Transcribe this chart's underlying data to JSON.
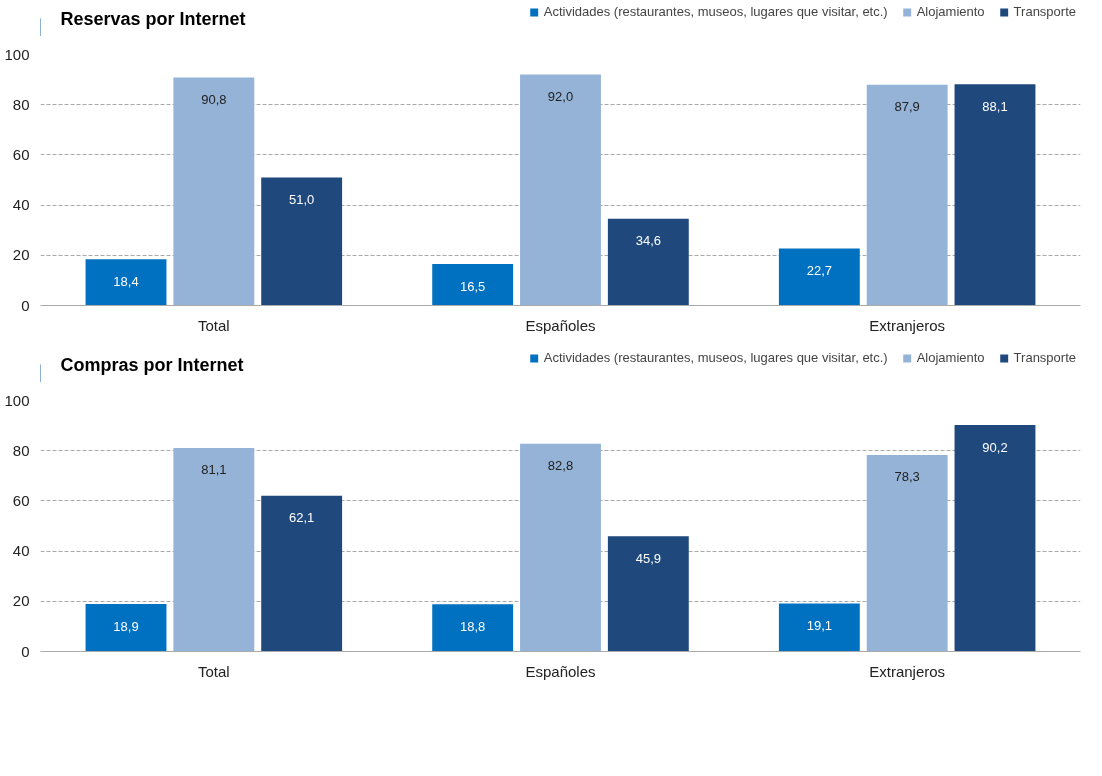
{
  "chart_data": [
    {
      "type": "bar",
      "title": "Reservas por Internet",
      "categories": [
        "Total",
        "Españoles",
        "Extranjeros"
      ],
      "series": [
        {
          "name": "Actividades (restaurantes, museos, lugares que visitar, etc.)",
          "color": "#0070c0",
          "values": [
            18.4,
            16.5,
            22.7
          ],
          "value_labels": [
            "18,4",
            "16,5",
            "22,7"
          ]
        },
        {
          "name": "Alojamiento",
          "color": "#95b3d7",
          "values": [
            90.8,
            92.0,
            87.9
          ],
          "value_labels": [
            "90,8",
            "92,0",
            "87,9"
          ]
        },
        {
          "name": "Transporte",
          "color": "#1f497d",
          "values": [
            51.0,
            34.6,
            88.1
          ],
          "value_labels": [
            "51,0",
            "34,6",
            "88,1"
          ]
        }
      ],
      "ylim": [
        0,
        100
      ],
      "yticks": [
        0,
        20,
        40,
        60,
        80,
        100
      ],
      "grid": "y",
      "legend": "top right"
    },
    {
      "type": "bar",
      "title": "Compras por Internet",
      "categories": [
        "Total",
        "Españoles",
        "Extranjeros"
      ],
      "series": [
        {
          "name": "Actividades (restaurantes, museos, lugares que visitar, etc.)",
          "color": "#0070c0",
          "values": [
            18.9,
            18.8,
            19.1
          ],
          "value_labels": [
            "18,9",
            "18,8",
            "19,1"
          ]
        },
        {
          "name": "Alojamiento",
          "color": "#95b3d7",
          "values": [
            81.1,
            82.8,
            78.3
          ],
          "value_labels": [
            "81,1",
            "82,8",
            "78,3"
          ]
        },
        {
          "name": "Transporte",
          "color": "#1f497d",
          "values": [
            62.1,
            45.9,
            90.2
          ],
          "value_labels": [
            "62,1",
            "45,9",
            "90,2"
          ]
        }
      ],
      "ylim": [
        0,
        100
      ],
      "yticks": [
        0,
        20,
        40,
        60,
        80,
        100
      ],
      "grid": "y",
      "legend": "top right"
    }
  ]
}
